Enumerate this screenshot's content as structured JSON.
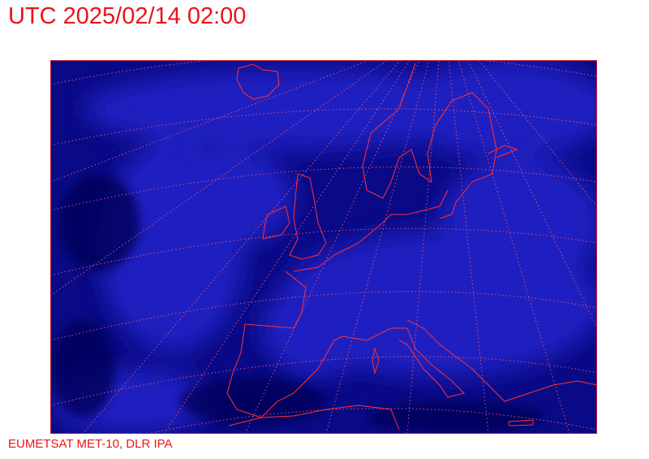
{
  "title": "UTC 2025/02/14 02:00",
  "credit": "EUMETSAT MET-10, DLR IPA",
  "map": {
    "imagery": "infrared satellite image, blue colour enhancement",
    "overlay": [
      "coastlines",
      "lat-lon graticule"
    ],
    "colors": {
      "text": "#e8141c",
      "coastline": "#ff3030",
      "graticule": "#d85070",
      "background": "#0a0a8a",
      "cloud": "#2a2ad8"
    }
  }
}
